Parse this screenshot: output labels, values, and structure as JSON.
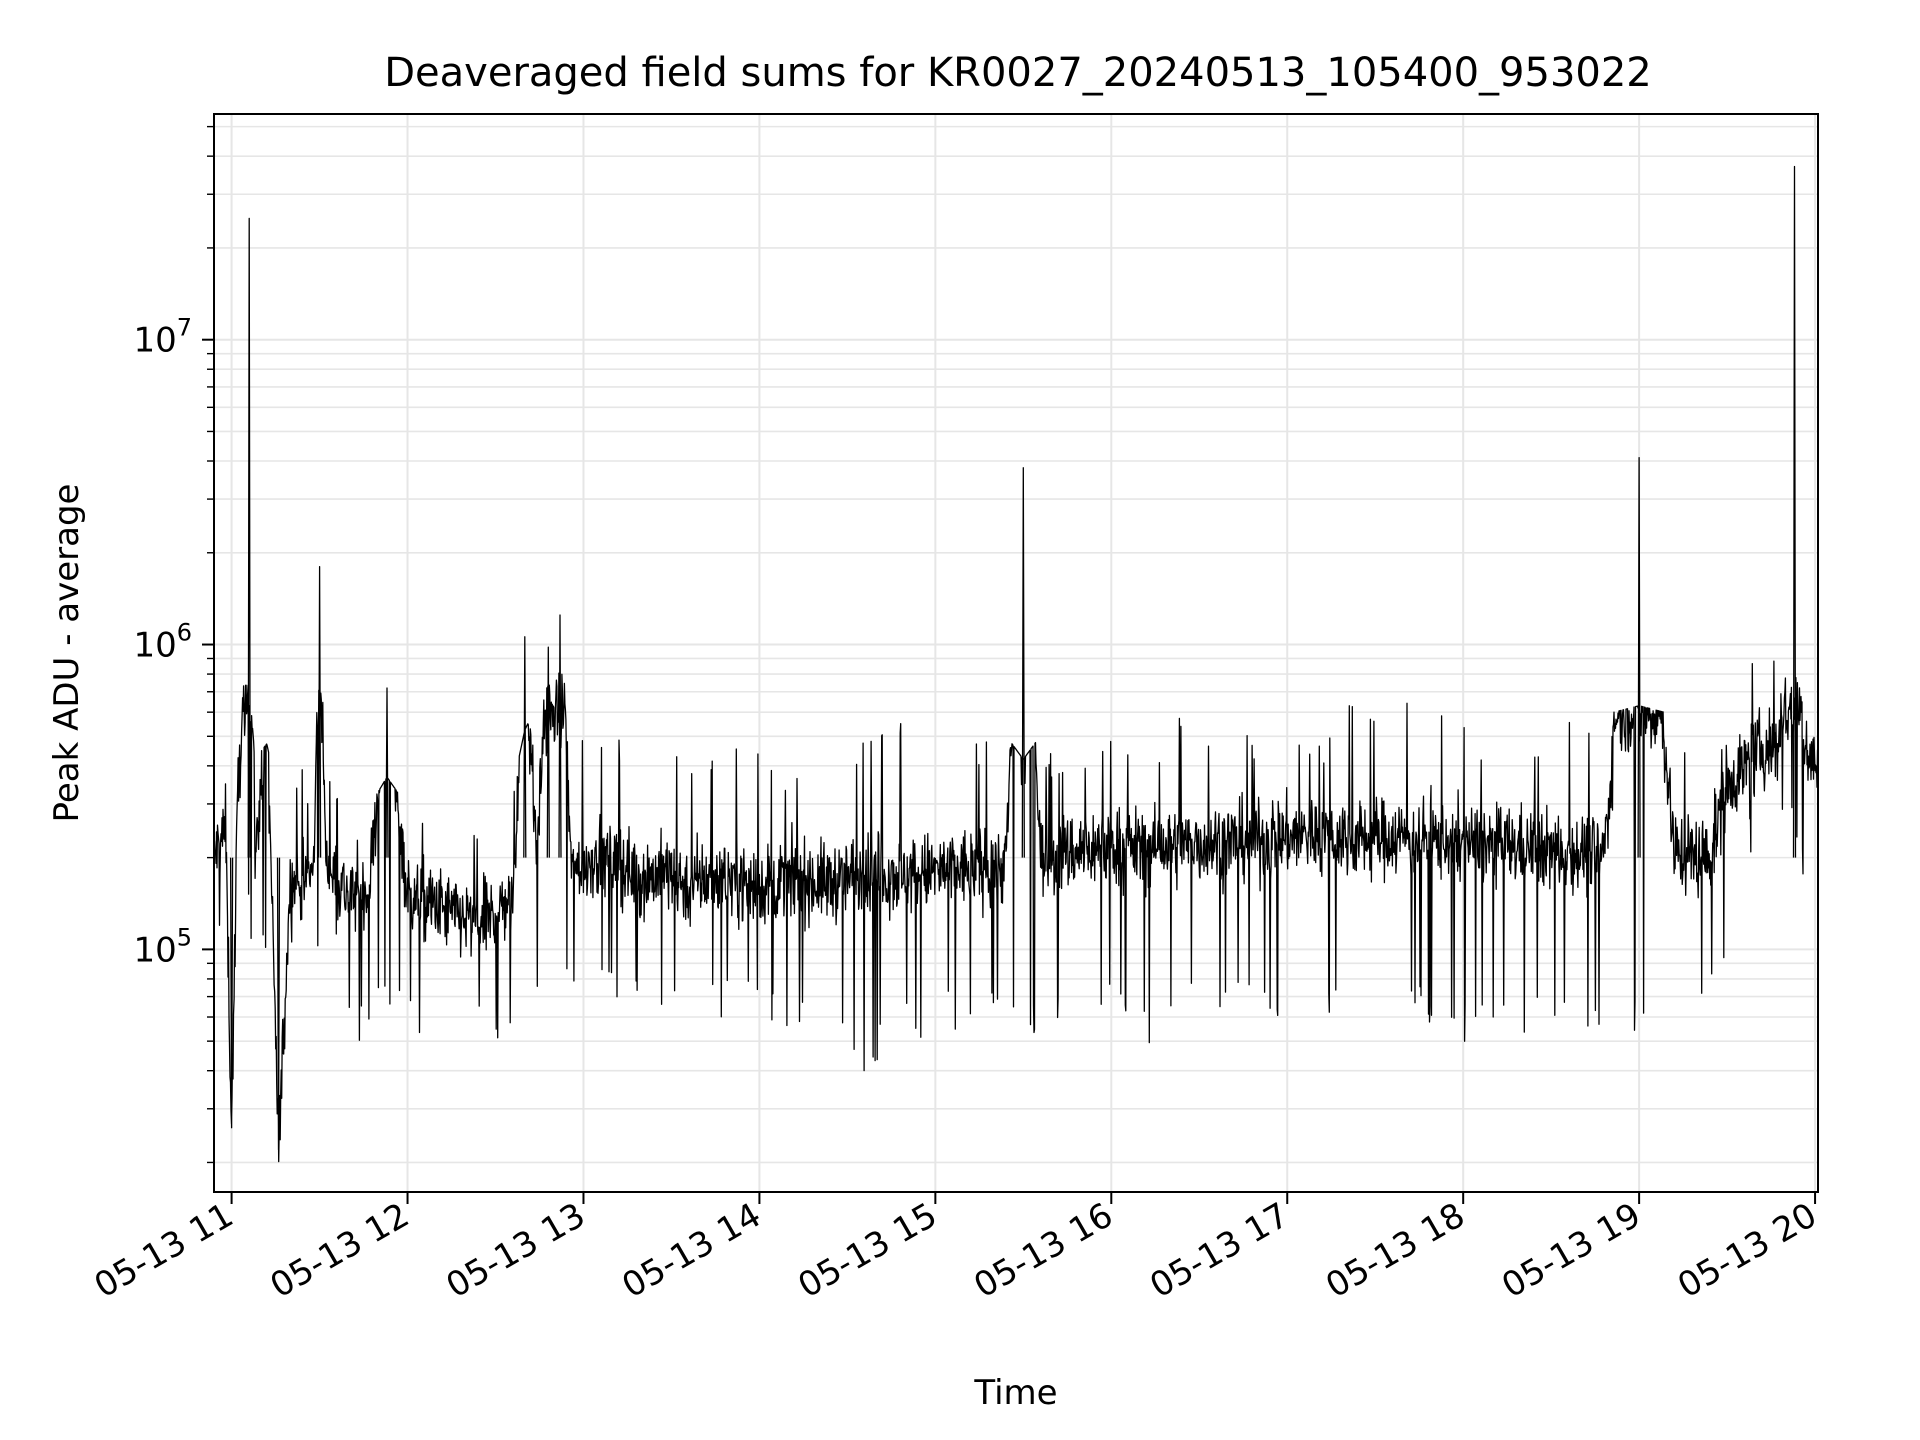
{
  "chart_data": {
    "type": "line",
    "title": "Deaveraged field sums for KR0027_20240513_105400_953022",
    "xlabel": "Time",
    "ylabel": "Peak ADU - average",
    "x_scale": "time",
    "y_scale": "log",
    "xlim": [
      "2024-05-13 10:54",
      "2024-05-13 20:01"
    ],
    "ylim": [
      16000,
      55000000
    ],
    "grid": true,
    "x_ticks": [
      "05-13 11",
      "05-13 12",
      "05-13 13",
      "05-13 14",
      "05-13 15",
      "05-13 16",
      "05-13 17",
      "05-13 18",
      "05-13 19",
      "05-13 20"
    ],
    "y_ticks": [
      {
        "base": "10",
        "exp": "5",
        "value": 100000
      },
      {
        "base": "10",
        "exp": "6",
        "value": 1000000
      },
      {
        "base": "10",
        "exp": "7",
        "value": 10000000
      }
    ],
    "line_color": "#000000",
    "grid_color": "#e6e6e6",
    "series": [
      {
        "x": [
          "2024-05-13 10:54",
          "2024-05-13 10:58",
          "2024-05-13 11:00",
          "2024-05-13 11:02",
          "2024-05-13 11:04",
          "2024-05-13 11:06",
          "2024-05-13 11:08",
          "2024-05-13 11:12",
          "2024-05-13 11:16",
          "2024-05-13 11:20",
          "2024-05-13 11:24",
          "2024-05-13 11:28",
          "2024-05-13 11:30",
          "2024-05-13 11:32",
          "2024-05-13 11:36",
          "2024-05-13 11:40",
          "2024-05-13 11:47",
          "2024-05-13 11:53",
          "2024-05-13 12:00",
          "2024-05-13 12:08",
          "2024-05-13 12:16",
          "2024-05-13 12:24",
          "2024-05-13 12:33",
          "2024-05-13 12:36",
          "2024-05-13 12:40",
          "2024-05-13 12:44",
          "2024-05-13 12:48",
          "2024-05-13 12:52",
          "2024-05-13 12:56",
          "2024-05-13 13:04",
          "2024-05-13 13:12",
          "2024-05-13 13:20",
          "2024-05-13 13:28",
          "2024-05-13 13:36",
          "2024-05-13 13:44",
          "2024-05-13 13:52",
          "2024-05-13 14:00",
          "2024-05-13 14:12",
          "2024-05-13 14:24",
          "2024-05-13 14:36",
          "2024-05-13 14:48",
          "2024-05-13 15:00",
          "2024-05-13 15:12",
          "2024-05-13 15:24",
          "2024-05-13 15:30",
          "2024-05-13 15:36",
          "2024-05-13 15:48",
          "2024-05-13 16:00",
          "2024-05-13 16:12",
          "2024-05-13 16:24",
          "2024-05-13 16:36",
          "2024-05-13 16:48",
          "2024-05-13 17:00",
          "2024-05-13 17:12",
          "2024-05-13 17:24",
          "2024-05-13 17:36",
          "2024-05-13 17:48",
          "2024-05-13 18:00",
          "2024-05-13 18:12",
          "2024-05-13 18:24",
          "2024-05-13 18:36",
          "2024-05-13 18:48",
          "2024-05-13 19:00",
          "2024-05-13 19:12",
          "2024-05-13 19:24",
          "2024-05-13 19:30",
          "2024-05-13 19:36",
          "2024-05-13 19:42",
          "2024-05-13 19:48",
          "2024-05-13 19:53",
          "2024-05-13 19:56",
          "2024-05-13 20:00"
        ],
        "y": [
          200000,
          250000,
          26000,
          300000,
          700000,
          25000000,
          180000,
          640000,
          22000,
          170000,
          160000,
          180000,
          1800000,
          200000,
          170000,
          150000,
          160000,
          720000,
          150000,
          140000,
          130000,
          120000,
          140000,
          150000,
          1060000,
          200000,
          980000,
          1250000,
          180000,
          200000,
          190000,
          170000,
          180000,
          160000,
          175000,
          170000,
          160000,
          170000,
          165000,
          180000,
          175000,
          180000,
          185000,
          190000,
          3800000,
          200000,
          210000,
          220000,
          215000,
          220000,
          225000,
          230000,
          235000,
          240000,
          230000,
          235000,
          230000,
          225000,
          220000,
          215000,
          210000,
          205000,
          4100000,
          210000,
          200000,
          350000,
          400000,
          450000,
          480000,
          37000000,
          500000,
          400000
        ],
        "low": [
          100000,
          120000,
          26000,
          110000,
          150000,
          110000,
          90000,
          90000,
          22000,
          80000,
          75000,
          75000,
          90000,
          60000,
          55000,
          50000,
          50000,
          60000,
          55000,
          50000,
          55000,
          60000,
          38000,
          55000,
          70000,
          60000,
          60000,
          55000,
          70000,
          70000,
          65000,
          60000,
          55000,
          50000,
          55000,
          60000,
          55000,
          50000,
          45000,
          38000,
          50000,
          52000,
          55000,
          60000,
          55000,
          52000,
          55000,
          60000,
          45000,
          55000,
          60000,
          58000,
          55000,
          58000,
          55000,
          52000,
          55000,
          50000,
          48000,
          50000,
          48000,
          50000,
          53000,
          52000,
          60000,
          80000,
          200000,
          220000,
          250000,
          250000,
          160000,
          220000
        ],
        "high": [
          340000,
          400000,
          300000,
          500000,
          700000,
          700000,
          400000,
          450000,
          300000,
          380000,
          400000,
          350000,
          1330000,
          450000,
          330000,
          300000,
          280000,
          350000,
          280000,
          300000,
          280000,
          250000,
          280000,
          330000,
          500000,
          600000,
          700000,
          800000,
          580000,
          550000,
          500000,
          480000,
          600000,
          400000,
          450000,
          560000,
          430000,
          400000,
          380000,
          570000,
          580000,
          450000,
          490000,
          480000,
          400000,
          480000,
          450000,
          600000,
          480000,
          600000,
          500000,
          530000,
          520000,
          480000,
          720000,
          700000,
          700000,
          560000,
          500000,
          520000,
          580000,
          560000,
          600000,
          560000,
          520000,
          600000,
          1050000,
          700000,
          1000000,
          750000,
          700000,
          700000
        ]
      }
    ]
  }
}
